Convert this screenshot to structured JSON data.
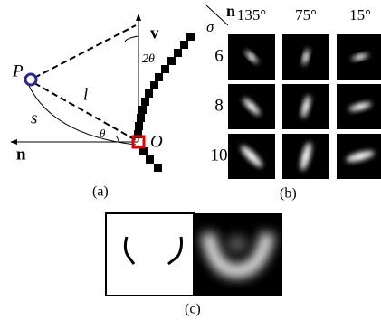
{
  "panel_a": {
    "labels": {
      "p": "P",
      "v": "v",
      "two_theta": "2θ",
      "l": "l",
      "s": "s",
      "theta": "θ",
      "o": "O",
      "n": "n"
    },
    "caption": "(a)"
  },
  "panel_b": {
    "corner_n": "n",
    "corner_sigma": "σ",
    "columns": [
      "135°",
      "75°",
      "15°"
    ],
    "rows": [
      "6",
      "8",
      "10"
    ],
    "caption": "(b)"
  },
  "panel_c": {
    "caption": "(c)"
  }
}
